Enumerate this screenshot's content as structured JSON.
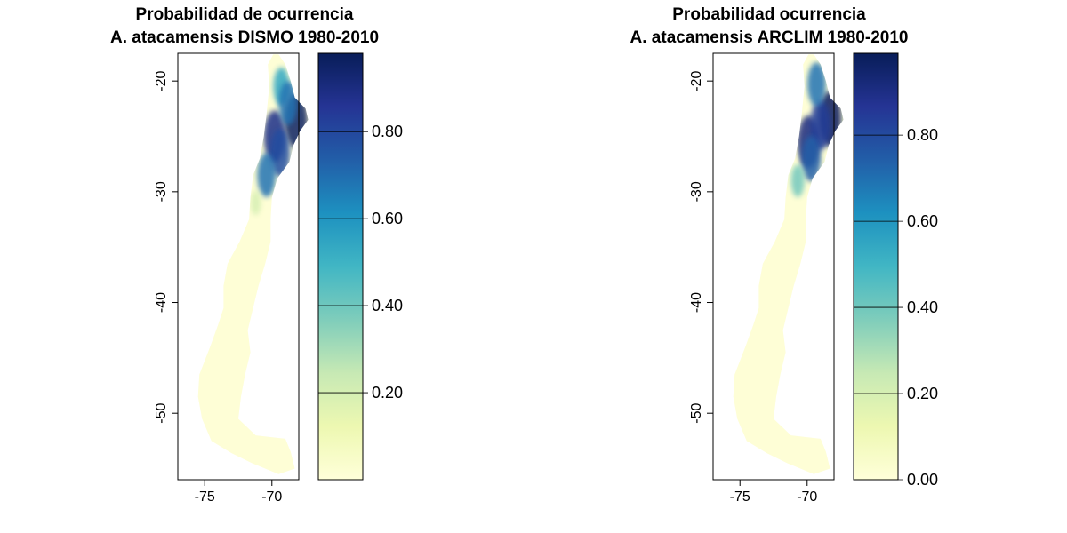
{
  "colors": {
    "scale": [
      "#ffffd9",
      "#edf8b1",
      "#c7e9b4",
      "#7fcdbb",
      "#41b6c4",
      "#1d91c0",
      "#225ea8",
      "#253494",
      "#081d58"
    ],
    "background": "#ffffff",
    "frame": "#000000"
  },
  "chart_data": [
    {
      "type": "heatmap",
      "title_line1": "Probabilidad de ocurrencia",
      "title_line2": "A. atacamensis DISMO 1980-2010",
      "xlim": [
        -77,
        -68
      ],
      "ylim": [
        -56,
        -17.5
      ],
      "x_ticks": [
        -75,
        -70
      ],
      "x_tick_labels": [
        "-75",
        "-70"
      ],
      "y_ticks": [
        -20,
        -30,
        -40,
        -50
      ],
      "y_tick_labels": [
        "-20",
        "-30",
        "-40",
        "-50"
      ],
      "colorbar": {
        "range": [
          0,
          0.98
        ],
        "ticks": [
          0.2,
          0.4,
          0.6,
          0.8
        ],
        "tick_labels": [
          "0.20",
          "0.40",
          "0.60",
          "0.80"
        ]
      },
      "hotspots": [
        {
          "lat": -23.6,
          "lon": -68.2,
          "value": 0.98
        },
        {
          "lat": -25.0,
          "lon": -69.8,
          "value": 0.9
        },
        {
          "lat": -26.5,
          "lon": -69.4,
          "value": 0.8
        },
        {
          "lat": -28.5,
          "lon": -70.4,
          "value": 0.7
        },
        {
          "lat": -20.5,
          "lon": -69.3,
          "value": 0.55
        },
        {
          "lat": -22.0,
          "lon": -68.8,
          "value": 0.7
        },
        {
          "lat": -31.0,
          "lon": -71.2,
          "value": 0.2
        }
      ]
    },
    {
      "type": "heatmap",
      "title_line1": "Probabilidad ocurrencia",
      "title_line2": "A. atacamensis ARCLIM 1980-2010",
      "xlim": [
        -77,
        -68
      ],
      "ylim": [
        -56,
        -17.5
      ],
      "x_ticks": [
        -75,
        -70
      ],
      "x_tick_labels": [
        "-75",
        "-70"
      ],
      "y_ticks": [
        -20,
        -30,
        -40,
        -50
      ],
      "y_tick_labels": [
        "-20",
        "-30",
        "-40",
        "-50"
      ],
      "colorbar": {
        "range": [
          0,
          0.99
        ],
        "ticks": [
          0.0,
          0.2,
          0.4,
          0.6,
          0.8
        ],
        "tick_labels": [
          "0.00",
          "0.20",
          "0.40",
          "0.60",
          "0.80"
        ]
      },
      "hotspots": [
        {
          "lat": -23.4,
          "lon": -68.3,
          "value": 0.99
        },
        {
          "lat": -25.5,
          "lon": -69.9,
          "value": 0.92
        },
        {
          "lat": -24.0,
          "lon": -69.0,
          "value": 0.85
        },
        {
          "lat": -27.0,
          "lon": -69.7,
          "value": 0.75
        },
        {
          "lat": -20.3,
          "lon": -69.3,
          "value": 0.7
        },
        {
          "lat": -29.0,
          "lon": -70.7,
          "value": 0.4
        }
      ]
    }
  ]
}
